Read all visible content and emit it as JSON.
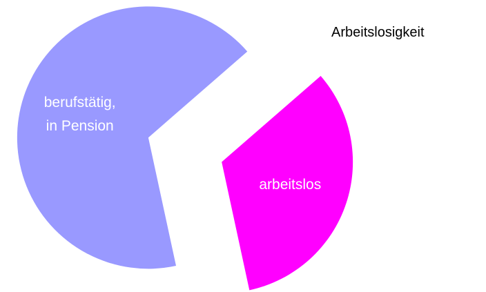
{
  "chart_data": {
    "type": "pie",
    "title": "Arbeitslosigkeit",
    "categories": [
      "arbeitslos",
      "berufstätig,\nin Pension"
    ],
    "values": [
      33,
      67
    ],
    "colors": [
      "#ff00ff",
      "#9999ff"
    ]
  }
}
